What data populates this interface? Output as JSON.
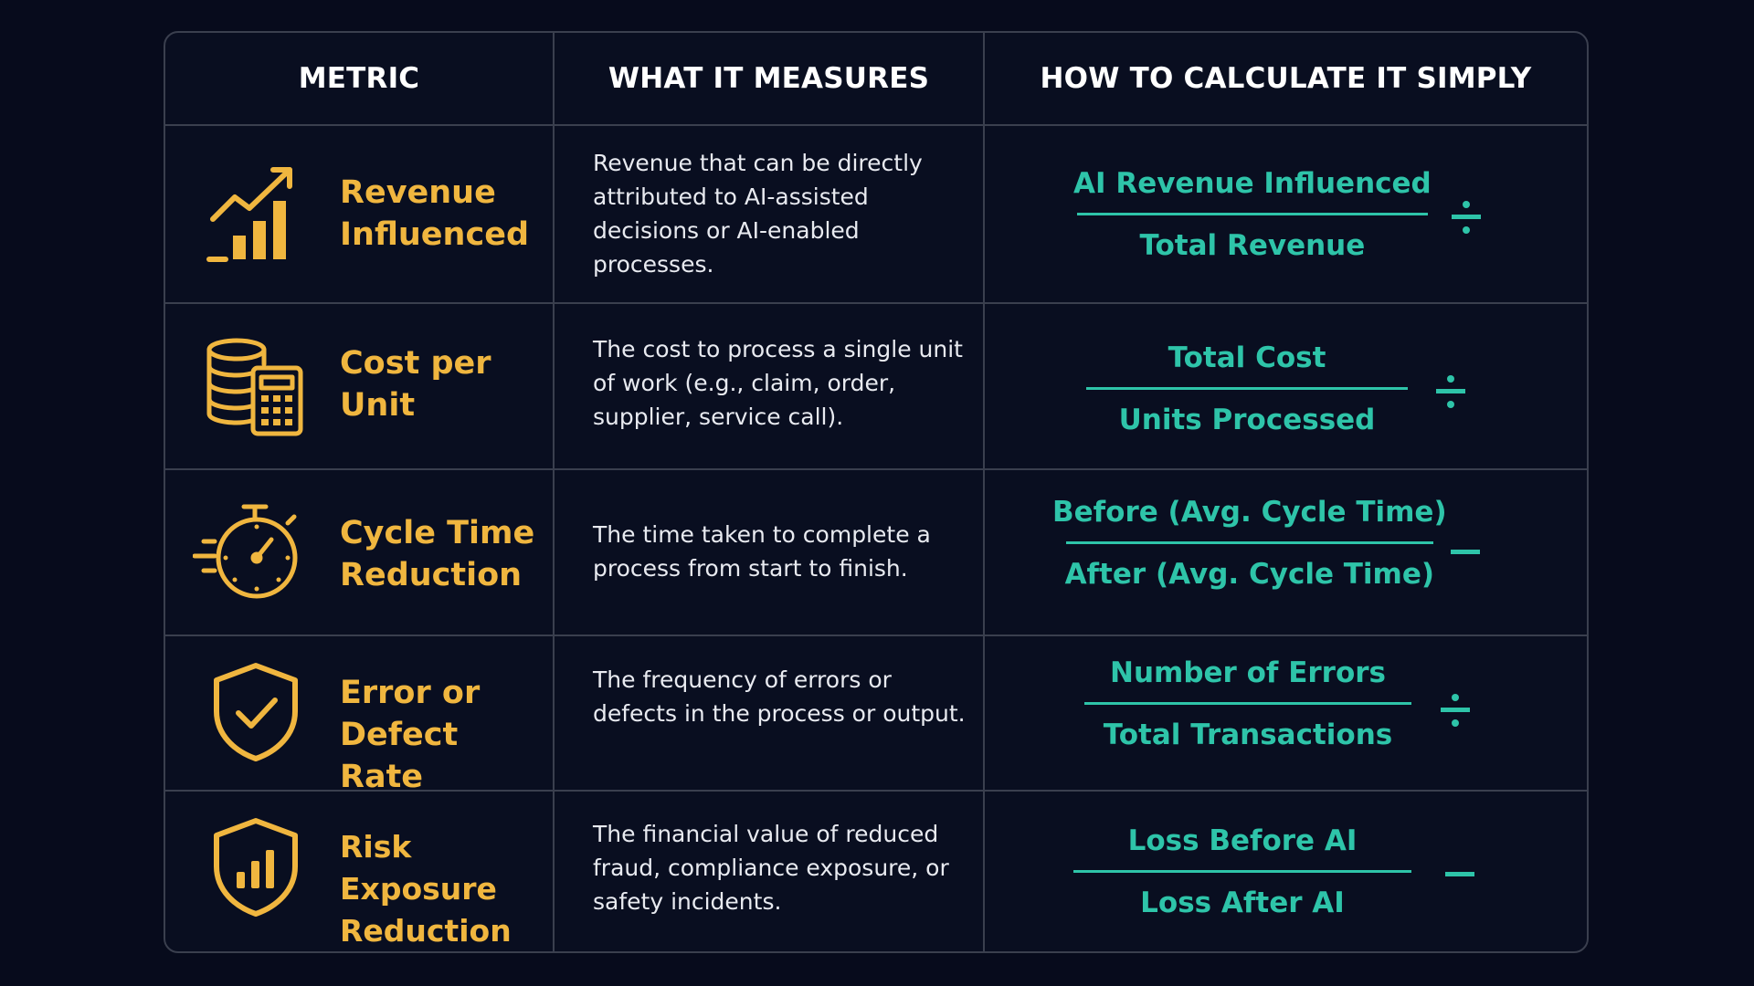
{
  "headers": {
    "metric": "METRIC",
    "measures": "WHAT IT MEASURES",
    "calculate": "HOW TO CALCULATE IT SIMPLY"
  },
  "colors": {
    "metric_accent": "#f0b63f",
    "formula_accent": "#2ec4a9",
    "background": "#070b1c",
    "border": "#3a3f4e"
  },
  "rows": [
    {
      "icon": "growth-chart-icon",
      "name_line1": "Revenue",
      "name_line2": "Influenced",
      "description": "Revenue that can be directly attributed to AI-assisted decisions or AI-enabled processes.",
      "numerator": "AI Revenue Influenced",
      "denominator": "Total Revenue",
      "operator": "divide"
    },
    {
      "icon": "coins-calculator-icon",
      "name_line1": "Cost per",
      "name_line2": "Unit",
      "description": "The cost to process a single unit of work (e.g., claim, order, supplier, service call).",
      "numerator": "Total Cost",
      "denominator": "Units Processed",
      "operator": "divide"
    },
    {
      "icon": "stopwatch-icon",
      "name_line1": "Cycle Time",
      "name_line2": "Reduction",
      "description": "The time taken to complete a process from start to finish.",
      "numerator": "Before (Avg. Cycle Time)",
      "denominator": "After (Avg. Cycle Time)",
      "operator": "minus"
    },
    {
      "icon": "shield-check-icon",
      "name_line1": "Error or",
      "name_line2": "Defect Rate",
      "description": "The frequency of errors or defects in the process or output.",
      "numerator": "Number of Errors",
      "denominator": "Total Transactions",
      "operator": "divide"
    },
    {
      "icon": "shield-chart-icon",
      "name_line1": "Risk Exposure",
      "name_line2": "Reduction",
      "description": "The financial value of reduced fraud, compliance exposure, or safety incidents.",
      "numerator": "Loss Before AI",
      "denominator": "Loss After AI",
      "operator": "minus"
    }
  ]
}
